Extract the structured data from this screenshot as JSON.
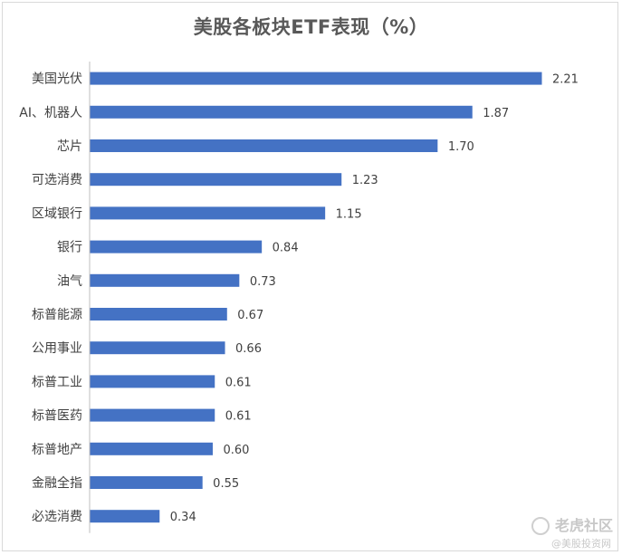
{
  "chart_data": {
    "type": "bar",
    "orientation": "horizontal",
    "title": "美股各板块ETF表现（%）",
    "categories": [
      "美国光伏",
      "AI、机器人",
      "芯片",
      "可选消费",
      "区域银行",
      "银行",
      "油气",
      "标普能源",
      "公用事业",
      "标普工业",
      "标普医药",
      "标普地产",
      "金融全指",
      "必选消费"
    ],
    "values": [
      2.21,
      1.87,
      1.7,
      1.23,
      1.15,
      0.84,
      0.73,
      0.67,
      0.66,
      0.61,
      0.61,
      0.6,
      0.55,
      0.34
    ],
    "value_labels": [
      "2.21",
      "1.87",
      "1.70",
      "1.23",
      "1.15",
      "0.84",
      "0.73",
      "0.67",
      "0.66",
      "0.61",
      "0.61",
      "0.60",
      "0.55",
      "0.34"
    ],
    "xlim": [
      0,
      2.2
    ],
    "grid": false,
    "bar_color": "#4472C4"
  },
  "watermark": {
    "main": "老虎社区",
    "sub": "@美股投资网"
  }
}
